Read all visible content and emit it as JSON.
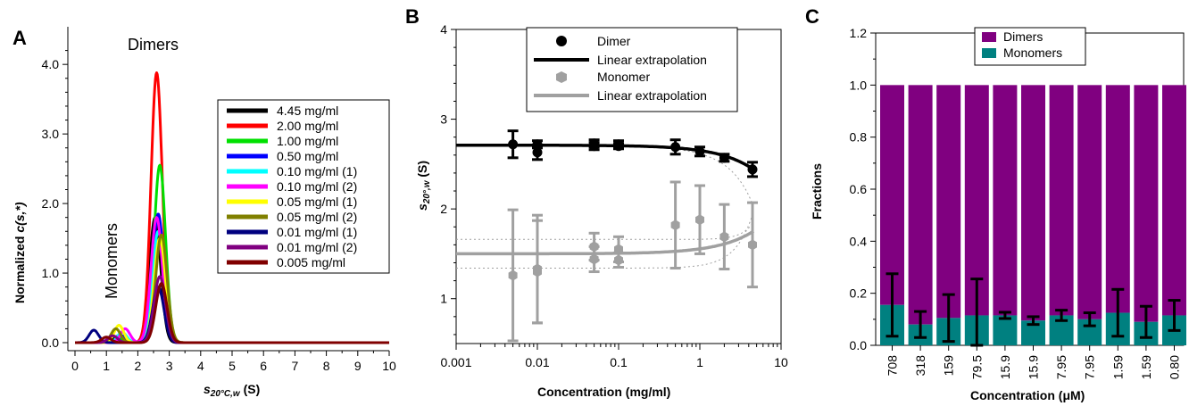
{
  "panels": {
    "a": "A",
    "b": "B",
    "c": "C"
  },
  "chart_data": [
    {
      "type": "line",
      "panel": "A",
      "ylabel_prefix": "Normalized ",
      "ylabel_fn": "c(s,*)",
      "xlabel_sym": "s",
      "xlabel_sub": "20°C,w",
      "xlabel_unit": " (S)",
      "annotations": {
        "dimers": "Dimers",
        "monomers": "Monomers"
      },
      "xlim": [
        0,
        10
      ],
      "ylim": [
        0,
        4.4
      ],
      "x_ticks": [
        "0",
        "1",
        "2",
        "3",
        "4",
        "5",
        "6",
        "7",
        "8",
        "9",
        "10"
      ],
      "y_ticks": [
        "0.0",
        "1.0",
        "2.0",
        "3.0",
        "4.0"
      ],
      "legend_position": "right",
      "series": [
        {
          "name": "4.45 mg/ml",
          "color": "#000000",
          "dimer_peak": {
            "s": 2.55,
            "height": 1.8
          },
          "monomer_peak": {
            "s": 1.4,
            "height": 0.1
          }
        },
        {
          "name": "2.00 mg/ml",
          "color": "#ff0000",
          "dimer_peak": {
            "s": 2.6,
            "height": 3.88
          },
          "monomer_peak": {
            "s": 1.0,
            "height": 0.02
          }
        },
        {
          "name": "1.00 mg/ml",
          "color": "#00e000",
          "dimer_peak": {
            "s": 2.7,
            "height": 2.55
          },
          "monomer_peak": {
            "s": 1.4,
            "height": 0.05
          }
        },
        {
          "name": "0.50 mg/ml",
          "color": "#0000ff",
          "dimer_peak": {
            "s": 2.65,
            "height": 1.85
          },
          "monomer_peak": {
            "s": 1.5,
            "height": 0.1
          }
        },
        {
          "name": "0.10 mg/ml (1)",
          "color": "#00ffff",
          "dimer_peak": {
            "s": 2.65,
            "height": 1.6
          },
          "monomer_peak": {
            "s": 1.5,
            "height": 0.15
          }
        },
        {
          "name": "0.10 mg/ml (2)",
          "color": "#ff00ff",
          "dimer_peak": {
            "s": 2.6,
            "height": 1.8
          },
          "monomer_peak": {
            "s": 1.6,
            "height": 0.2
          }
        },
        {
          "name": "0.05 mg/ml (1)",
          "color": "#ffff00",
          "dimer_peak": {
            "s": 2.7,
            "height": 1.5
          },
          "monomer_peak": {
            "s": 1.4,
            "height": 0.25
          }
        },
        {
          "name": "0.05 mg/ml (2)",
          "color": "#808000",
          "dimer_peak": {
            "s": 2.75,
            "height": 1.55
          },
          "monomer_peak": {
            "s": 1.3,
            "height": 0.2
          }
        },
        {
          "name": "0.01 mg/ml (1)",
          "color": "#00007f",
          "dimer_peak": {
            "s": 2.65,
            "height": 0.8
          },
          "monomer_peak": {
            "s": 0.6,
            "height": 0.18
          }
        },
        {
          "name": "0.01 mg/ml (2)",
          "color": "#800080",
          "dimer_peak": {
            "s": 2.7,
            "height": 0.95
          },
          "monomer_peak": {
            "s": 1.2,
            "height": 0.1
          }
        },
        {
          "name": "0.005 mg/ml",
          "color": "#800000",
          "dimer_peak": {
            "s": 2.75,
            "height": 0.85
          },
          "monomer_peak": {
            "s": 1.0,
            "height": 0.08
          }
        }
      ]
    },
    {
      "type": "scatter",
      "panel": "B",
      "xscale": "log",
      "xlabel": "Concentration (mg/ml)",
      "ylabel_sym": "s",
      "ylabel_sub": "20°,w",
      "ylabel_unit": " (S)",
      "xlim": [
        0.001,
        10
      ],
      "ylim": [
        0.5,
        4
      ],
      "x_ticks": [
        {
          "v": 0.001,
          "l": "0.001"
        },
        {
          "v": 0.01,
          "l": "0.01"
        },
        {
          "v": 0.1,
          "l": "0.1"
        },
        {
          "v": 1,
          "l": "1"
        },
        {
          "v": 10,
          "l": "10"
        }
      ],
      "y_ticks": [
        {
          "v": 1,
          "l": "1"
        },
        {
          "v": 2,
          "l": "2"
        },
        {
          "v": 3,
          "l": "3"
        },
        {
          "v": 4,
          "l": "4"
        }
      ],
      "legend": [
        "Dimer",
        "Linear extrapolation",
        "Monomer",
        "Linear extrapolation"
      ],
      "dimer_color": "#000000",
      "monomer_color": "#a0a0a0",
      "dimer_points": [
        {
          "x": 0.005,
          "y": 2.72,
          "err": 0.15
        },
        {
          "x": 0.01,
          "y": 2.63,
          "err": 0.08
        },
        {
          "x": 0.01,
          "y": 2.72,
          "err": 0.04
        },
        {
          "x": 0.05,
          "y": 2.73,
          "err": 0.04
        },
        {
          "x": 0.05,
          "y": 2.7,
          "err": 0.04
        },
        {
          "x": 0.1,
          "y": 2.72,
          "err": 0.04
        },
        {
          "x": 0.1,
          "y": 2.7,
          "err": 0.03
        },
        {
          "x": 0.5,
          "y": 2.69,
          "err": 0.08
        },
        {
          "x": 1,
          "y": 2.64,
          "err": 0.05
        },
        {
          "x": 2,
          "y": 2.57,
          "err": 0.04
        },
        {
          "x": 4.45,
          "y": 2.44,
          "err": 0.08
        }
      ],
      "monomer_points": [
        {
          "x": 0.005,
          "y": 1.26,
          "err": 0.73
        },
        {
          "x": 0.01,
          "y": 1.3,
          "err": 0.57
        },
        {
          "x": 0.01,
          "y": 1.33,
          "err": 0.6
        },
        {
          "x": 0.05,
          "y": 1.58,
          "err": 0.15
        },
        {
          "x": 0.05,
          "y": 1.44,
          "err": 0.14
        },
        {
          "x": 0.1,
          "y": 1.55,
          "err": 0.14
        },
        {
          "x": 0.1,
          "y": 1.43,
          "err": 0.08
        },
        {
          "x": 0.5,
          "y": 1.82,
          "err": 0.48
        },
        {
          "x": 1,
          "y": 1.88,
          "err": 0.38
        },
        {
          "x": 2,
          "y": 1.69,
          "err": 0.36
        },
        {
          "x": 4.45,
          "y": 1.6,
          "err": 0.47
        }
      ]
    },
    {
      "type": "bar",
      "panel": "C",
      "stacked": true,
      "ylabel": "Fractions",
      "xlabel": "Concentration (μM)",
      "ylim": [
        0,
        1.2
      ],
      "y_ticks": [
        "0.0",
        "0.2",
        "0.4",
        "0.6",
        "0.8",
        "1.0",
        "1.2"
      ],
      "categories": [
        "708",
        "318",
        "159",
        "79.5",
        "15.9",
        "15.9",
        "7.95",
        "7.95",
        "1.59",
        "1.59",
        "0.80"
      ],
      "legend_position": "top",
      "series": [
        {
          "name": "Monomers",
          "color": "#008080",
          "values": [
            0.155,
            0.08,
            0.105,
            0.115,
            0.115,
            0.095,
            0.115,
            0.1,
            0.125,
            0.09,
            0.115
          ],
          "err": [
            0.12,
            0.05,
            0.09,
            0.14,
            0.012,
            0.015,
            0.02,
            0.025,
            0.09,
            0.06,
            0.058
          ]
        },
        {
          "name": "Dimers",
          "color": "#800080",
          "values": [
            0.845,
            0.92,
            0.895,
            0.885,
            0.885,
            0.905,
            0.885,
            0.9,
            0.875,
            0.91,
            0.885
          ]
        }
      ]
    }
  ]
}
